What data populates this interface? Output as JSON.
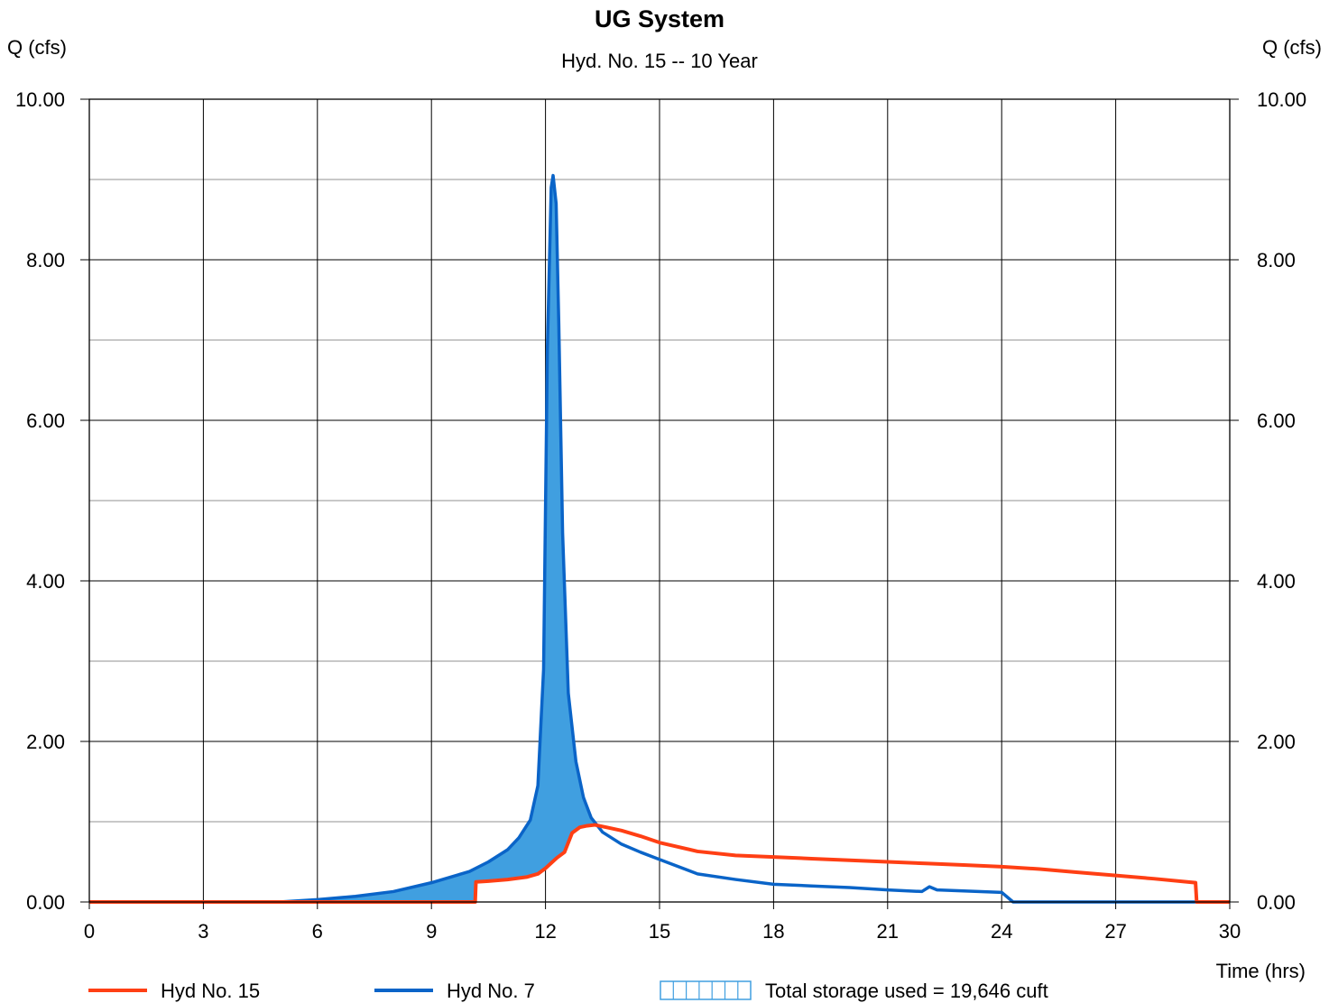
{
  "chart_data": {
    "type": "line",
    "title": "UG System",
    "subtitle": "Hyd. No. 15 -- 10 Year",
    "ylabel_left": "Q (cfs)",
    "ylabel_right": "Q (cfs)",
    "xlabel": "Time (hrs)",
    "xlim": [
      0,
      30
    ],
    "ylim": [
      0,
      10
    ],
    "x_ticks": [
      0,
      3,
      6,
      9,
      12,
      15,
      18,
      21,
      24,
      27,
      30
    ],
    "x_tick_labels": [
      "0",
      "3",
      "6",
      "9",
      "12",
      "15",
      "18",
      "21",
      "24",
      "27",
      "30"
    ],
    "y_ticks": [
      0,
      2,
      4,
      6,
      8,
      10
    ],
    "y_tick_labels": [
      "0.00",
      "2.00",
      "4.00",
      "6.00",
      "8.00",
      "10.00"
    ],
    "grid": true,
    "series": [
      {
        "name": "Hyd No. 15",
        "color": "#ff3f14",
        "x": [
          0,
          10.15,
          10.17,
          10.5,
          11,
          11.5,
          11.8,
          12.0,
          12.3,
          12.5,
          12.7,
          12.9,
          13.1,
          13.3,
          13.6,
          14,
          14.5,
          15,
          16,
          17,
          18,
          19,
          20,
          21,
          22,
          23,
          24,
          25,
          26,
          27,
          28,
          29.1,
          29.13,
          30
        ],
        "y": [
          0,
          0,
          0.25,
          0.26,
          0.28,
          0.31,
          0.35,
          0.42,
          0.55,
          0.62,
          0.86,
          0.93,
          0.95,
          0.96,
          0.93,
          0.89,
          0.82,
          0.74,
          0.63,
          0.58,
          0.56,
          0.54,
          0.52,
          0.5,
          0.48,
          0.46,
          0.44,
          0.41,
          0.37,
          0.33,
          0.29,
          0.24,
          0,
          0
        ]
      },
      {
        "name": "Hyd No. 7",
        "color": "#0a64c8",
        "x": [
          0,
          5,
          6,
          7,
          8,
          9,
          10,
          10.5,
          11,
          11.3,
          11.6,
          11.8,
          11.95,
          12.05,
          12.15,
          12.2,
          12.28,
          12.35,
          12.45,
          12.6,
          12.8,
          13.0,
          13.2,
          13.5,
          14,
          14.5,
          15,
          16,
          17,
          18,
          19,
          20,
          21,
          21.9,
          22.1,
          22.3,
          24,
          24.3,
          25,
          26,
          27,
          28,
          29,
          30
        ],
        "y": [
          0,
          0,
          0.03,
          0.07,
          0.13,
          0.24,
          0.38,
          0.5,
          0.65,
          0.8,
          1.02,
          1.45,
          2.9,
          6.9,
          8.9,
          9.05,
          8.7,
          7.2,
          4.6,
          2.6,
          1.75,
          1.3,
          1.05,
          0.87,
          0.72,
          0.62,
          0.53,
          0.35,
          0.28,
          0.22,
          0.2,
          0.18,
          0.15,
          0.13,
          0.19,
          0.15,
          0.12,
          0,
          0,
          0,
          0,
          0,
          0,
          0
        ]
      }
    ],
    "storage_fill_color": "#409fe0",
    "legend_placement": "bottom",
    "legend_entries": [
      "Hyd No. 15",
      "Hyd No. 7",
      "Total storage used = 19,646 cuft"
    ]
  }
}
